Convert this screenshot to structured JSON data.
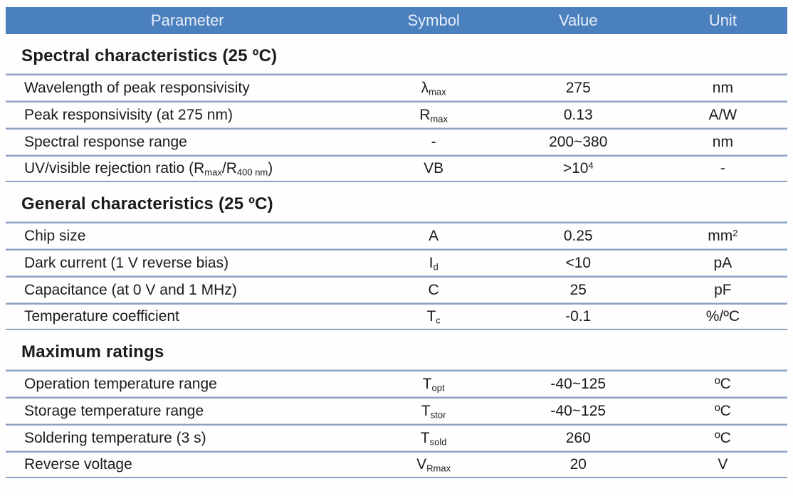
{
  "colors": {
    "header_bg": "#4a80bd",
    "header_text": "#e7eef9",
    "divider_line": "#8ba3c0",
    "body_text": "#1b1b1d"
  },
  "header": {
    "columns": [
      "Parameter",
      "Symbol",
      "Value",
      "Unit"
    ]
  },
  "sections": [
    {
      "title": "Spectral characteristics (25 ºC)",
      "rows": [
        {
          "param": [
            {
              "t": "Wavelength of peak responsivisity"
            }
          ],
          "symbol": [
            {
              "t": "λ"
            },
            {
              "t": "max",
              "sub": true
            }
          ],
          "value": [
            {
              "t": "275"
            }
          ],
          "unit": [
            {
              "t": "nm"
            }
          ]
        },
        {
          "param": [
            {
              "t": "Peak responsivisity (at 275 nm)"
            }
          ],
          "symbol": [
            {
              "t": "R"
            },
            {
              "t": "max",
              "sub": true
            }
          ],
          "value": [
            {
              "t": "0.13"
            }
          ],
          "unit": [
            {
              "t": "A/W"
            }
          ]
        },
        {
          "param": [
            {
              "t": "Spectral response range"
            }
          ],
          "symbol": [
            {
              "t": "-"
            }
          ],
          "value": [
            {
              "t": "200~380"
            }
          ],
          "unit": [
            {
              "t": "nm"
            }
          ]
        },
        {
          "param": [
            {
              "t": "UV/visible rejection ratio (R"
            },
            {
              "t": "max",
              "sub": true
            },
            {
              "t": "/R"
            },
            {
              "t": "400 nm",
              "sub": true
            },
            {
              "t": ")"
            }
          ],
          "symbol": [
            {
              "t": "VB"
            }
          ],
          "value": [
            {
              "t": ">10"
            },
            {
              "t": "4",
              "sup": true
            }
          ],
          "unit": [
            {
              "t": "-"
            }
          ]
        }
      ]
    },
    {
      "title": "General characteristics (25 ºC)",
      "rows": [
        {
          "param": [
            {
              "t": "Chip size"
            }
          ],
          "symbol": [
            {
              "t": "A"
            }
          ],
          "value": [
            {
              "t": "0.25"
            }
          ],
          "unit": [
            {
              "t": "mm"
            },
            {
              "t": "2",
              "sup": true
            }
          ]
        },
        {
          "param": [
            {
              "t": "Dark current (1 V reverse bias)"
            }
          ],
          "symbol": [
            {
              "t": "I"
            },
            {
              "t": "d",
              "sub": true
            }
          ],
          "value": [
            {
              "t": "<10"
            }
          ],
          "unit": [
            {
              "t": "pA"
            }
          ]
        },
        {
          "param": [
            {
              "t": "Capacitance (at 0 V and 1 MHz)"
            }
          ],
          "symbol": [
            {
              "t": "C"
            }
          ],
          "value": [
            {
              "t": "25"
            }
          ],
          "unit": [
            {
              "t": "pF"
            }
          ]
        },
        {
          "param": [
            {
              "t": "Temperature coefficient"
            }
          ],
          "symbol": [
            {
              "t": "T"
            },
            {
              "t": "c",
              "sub": true
            }
          ],
          "value": [
            {
              "t": "-0.1"
            }
          ],
          "unit": [
            {
              "t": "%/ºC"
            }
          ]
        }
      ]
    },
    {
      "title": "Maximum ratings",
      "rows": [
        {
          "param": [
            {
              "t": "Operation temperature range"
            }
          ],
          "symbol": [
            {
              "t": "T"
            },
            {
              "t": "opt",
              "sub": true
            }
          ],
          "value": [
            {
              "t": "-40~125"
            }
          ],
          "unit": [
            {
              "t": "ºC"
            }
          ]
        },
        {
          "param": [
            {
              "t": "Storage temperature range"
            }
          ],
          "symbol": [
            {
              "t": "T"
            },
            {
              "t": "stor",
              "sub": true
            }
          ],
          "value": [
            {
              "t": "-40~125"
            }
          ],
          "unit": [
            {
              "t": "ºC"
            }
          ]
        },
        {
          "param": [
            {
              "t": "Soldering temperature (3 s)"
            }
          ],
          "symbol": [
            {
              "t": "T"
            },
            {
              "t": "sold",
              "sub": true
            }
          ],
          "value": [
            {
              "t": "260"
            }
          ],
          "unit": [
            {
              "t": "ºC"
            }
          ]
        },
        {
          "param": [
            {
              "t": "Reverse voltage"
            }
          ],
          "symbol": [
            {
              "t": "V"
            },
            {
              "t": "Rmax",
              "sub": true
            }
          ],
          "value": [
            {
              "t": "20"
            }
          ],
          "unit": [
            {
              "t": "V"
            }
          ]
        }
      ]
    }
  ]
}
